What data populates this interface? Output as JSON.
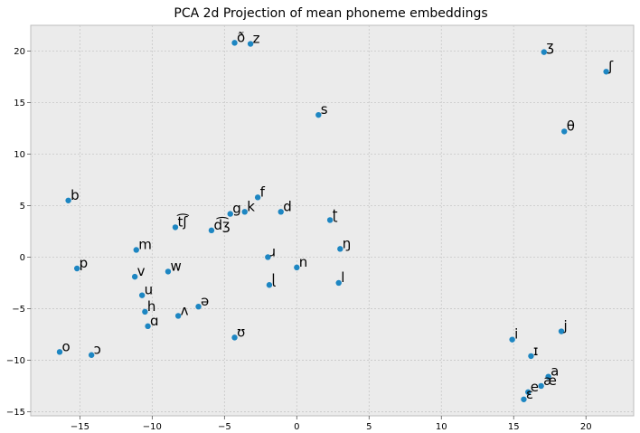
{
  "chart_data": {
    "type": "scatter",
    "title": "PCA 2d Projection of mean phoneme embeddings",
    "xlabel": "",
    "ylabel": "",
    "xlim": [
      -18.4,
      23.3
    ],
    "ylim": [
      -15.4,
      22.5
    ],
    "x_ticks": [
      -15,
      -10,
      -5,
      0,
      5,
      10,
      15,
      20
    ],
    "y_ticks": [
      -15,
      -10,
      -5,
      0,
      5,
      10,
      15,
      20
    ],
    "x_tick_labels": [
      "−15",
      "−10",
      "−5",
      "0",
      "5",
      "10",
      "15",
      "20"
    ],
    "y_tick_labels": [
      "−15",
      "−10",
      "−5",
      "0",
      "5",
      "10",
      "15",
      "20"
    ],
    "grid": true,
    "colors": {
      "background": "#ebebeb",
      "grid": "#c8c8c8",
      "marker": "#1d86c2",
      "frame": "#bcbcbc"
    },
    "points": [
      {
        "label": "ð",
        "x": -4.3,
        "y": 20.8
      },
      {
        "label": "z",
        "x": -3.2,
        "y": 20.7
      },
      {
        "label": "ʒ",
        "x": 17.1,
        "y": 19.9
      },
      {
        "label": "ʃ",
        "x": 21.4,
        "y": 18.0
      },
      {
        "label": "s",
        "x": 1.5,
        "y": 13.8
      },
      {
        "label": "θ",
        "x": 18.5,
        "y": 12.2
      },
      {
        "label": "b",
        "x": -15.8,
        "y": 5.5
      },
      {
        "label": "f",
        "x": -2.7,
        "y": 5.8
      },
      {
        "label": "d",
        "x": -1.1,
        "y": 4.4
      },
      {
        "label": "g",
        "x": -4.6,
        "y": 4.2
      },
      {
        "label": "k",
        "x": -3.6,
        "y": 4.4
      },
      {
        "label": "t͡ʃ",
        "x": -8.4,
        "y": 2.9
      },
      {
        "label": "d͡ʒ",
        "x": -5.9,
        "y": 2.6
      },
      {
        "label": "ʈ",
        "x": 2.3,
        "y": 3.6
      },
      {
        "label": "m",
        "x": -11.1,
        "y": 0.7
      },
      {
        "label": "ŋ",
        "x": 3.0,
        "y": 0.8
      },
      {
        "label": "ɹ",
        "x": -2.0,
        "y": 0.0
      },
      {
        "label": "p",
        "x": -15.2,
        "y": -1.1
      },
      {
        "label": "n",
        "x": 0.0,
        "y": -1.0
      },
      {
        "label": "w",
        "x": -8.9,
        "y": -1.4
      },
      {
        "label": "v",
        "x": -11.2,
        "y": -1.9
      },
      {
        "label": "ɭ",
        "x": -1.9,
        "y": -2.7
      },
      {
        "label": "l",
        "x": 2.9,
        "y": -2.5
      },
      {
        "label": "u",
        "x": -10.7,
        "y": -3.7
      },
      {
        "label": "ə",
        "x": -6.8,
        "y": -4.8
      },
      {
        "label": "h",
        "x": -10.5,
        "y": -5.3
      },
      {
        "label": "ʌ",
        "x": -8.2,
        "y": -5.7
      },
      {
        "label": "ɑ",
        "x": -10.3,
        "y": -6.7
      },
      {
        "label": "ʊ",
        "x": -4.3,
        "y": -7.8
      },
      {
        "label": "i",
        "x": 14.9,
        "y": -8.0
      },
      {
        "label": "j",
        "x": 18.3,
        "y": -7.2
      },
      {
        "label": "o",
        "x": -16.4,
        "y": -9.2
      },
      {
        "label": "ɔ",
        "x": -14.2,
        "y": -9.5
      },
      {
        "label": "ɪ",
        "x": 16.2,
        "y": -9.6
      },
      {
        "label": "a",
        "x": 17.4,
        "y": -11.6
      },
      {
        "label": "æ",
        "x": 16.9,
        "y": -12.5
      },
      {
        "label": "e",
        "x": 16.0,
        "y": -13.1
      },
      {
        "label": "ɛ",
        "x": 15.7,
        "y": -13.8
      }
    ]
  }
}
